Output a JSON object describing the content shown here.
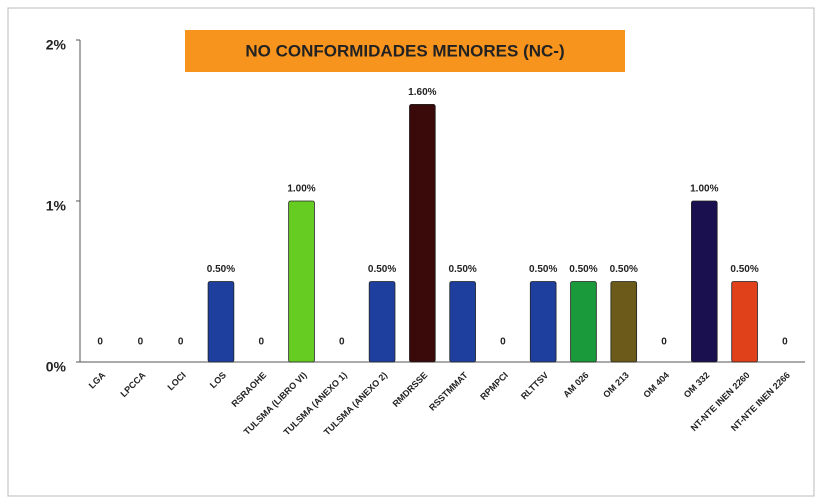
{
  "chart_data": {
    "type": "bar",
    "title": "NO CONFORMIDADES MENORES (NC-)",
    "categories": [
      "LGA",
      "LPCCA",
      "LOCI",
      "LOS",
      "RSRAOHE",
      "TULSMA (LIBRO VI)",
      "TULSMA (ANEXO 1)",
      "TULSMA (ANEXO 2)",
      "RMDRSSE",
      "RSSTMMAT",
      "RPMPCI",
      "RLTTSV",
      "AM 026",
      "OM 213",
      "OM 404",
      "OM 332",
      "NT-NTE INEN 2260",
      "NT-NTE INEN 2266"
    ],
    "values": [
      0,
      0,
      0,
      0.5,
      0,
      1,
      0,
      0.5,
      1.6,
      0.5,
      0,
      0.5,
      0.5,
      0.5,
      0,
      1,
      0.5,
      0
    ],
    "value_labels": [
      "0",
      "0",
      "0",
      "0.50%",
      "0",
      "1.00%",
      "0",
      "0.50%",
      "1.60%",
      "0.50%",
      "0",
      "0.50%",
      "0.50%",
      "0.50%",
      "0",
      "1.00%",
      "0.50%",
      "0"
    ],
    "colors": [
      "#1f3f9f",
      "#1f3f9f",
      "#1f3f9f",
      "#1f3f9f",
      "#1f3f9f",
      "#66cc22",
      "#1f3f9f",
      "#1f3f9f",
      "#3a0a0a",
      "#1f3f9f",
      "#1f3f9f",
      "#1f3f9f",
      "#1a9a3a",
      "#6b5a1a",
      "#1f3f9f",
      "#1a1050",
      "#e0401a",
      "#1f3f9f"
    ],
    "ylim": [
      0,
      2
    ],
    "yticks": [
      {
        "value": 0,
        "label": "0%"
      },
      {
        "value": 1,
        "label": "1%"
      },
      {
        "value": 2,
        "label": "2%"
      }
    ]
  }
}
